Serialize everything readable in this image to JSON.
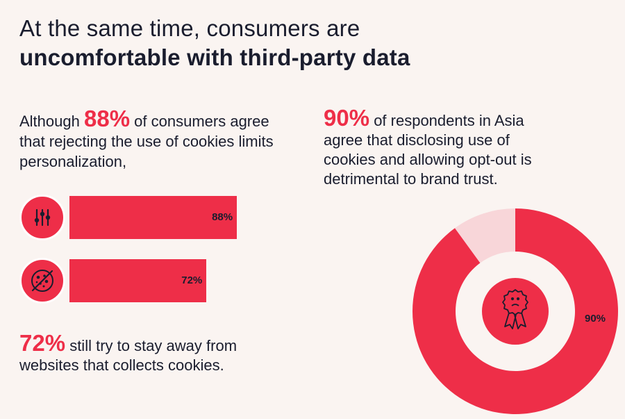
{
  "header": {
    "line1": "At the same time, consumers are",
    "line2": "uncomfortable with third-party data"
  },
  "left": {
    "lead_before": "Although",
    "lead_pct": "88%",
    "lead_after": "of consumers agree that rejecting the use of cookies limits personalization,",
    "footer_pct": "72%",
    "footer_text": "still try to stay away from websites that collects cookies."
  },
  "right": {
    "pct": "90%",
    "text": "of respondents in Asia agree that disclosing use of cookies and allowing opt-out is detrimental to brand trust."
  },
  "chart_data": [
    {
      "type": "bar",
      "orientation": "horizontal",
      "categories": [
        "personalization",
        "avoid-cookies"
      ],
      "values": [
        88,
        72
      ],
      "value_labels": [
        "88%",
        "72%"
      ],
      "icons": [
        "tuning-sliders-icon",
        "cookie-icon"
      ],
      "xlim": [
        0,
        100
      ],
      "color": "#ee2e48"
    },
    {
      "type": "pie",
      "donut": true,
      "values": [
        90,
        10
      ],
      "value_label": "90%",
      "colors": [
        "#ee2e48",
        "#f8d6d9"
      ],
      "center_icon": "sad-award-ribbon-icon"
    }
  ],
  "colors": {
    "accent": "#ee2e48",
    "text": "#1a1d2e",
    "background": "#faf4f1",
    "light": "#f8d6d9"
  }
}
